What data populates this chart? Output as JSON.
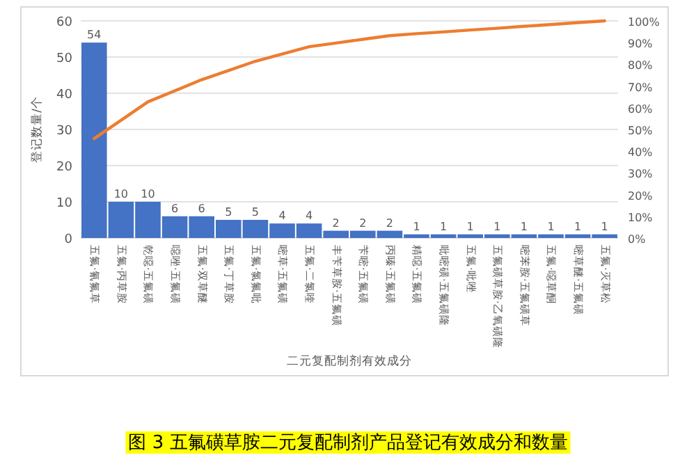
{
  "chart_data": {
    "type": "bar",
    "title": "图 3 五氟磺草胺二元复配制剂产品登记有效成分和数量",
    "xlabel": "二元复配制剂有效成分",
    "ylabel": "登记数量/个",
    "categories": [
      "五氟·氰氟草",
      "五氟·丙草胺",
      "乾噁·五氟磺",
      "噁唑·五氟磺",
      "五氟·双草醚",
      "五氟·丁草胺",
      "五氟·氯氟吡",
      "嘧草·五氟磺",
      "五氟·二氯喹",
      "丰苄草胺·五氟磺",
      "苄嘧·五氟磺",
      "丙嗪·五氟磺",
      "精噁·五氟磺",
      "吡嘧磺·五氟磺隆",
      "五氟·吡唑",
      "五氟磺草胺·乙氧磺隆",
      "嘧苯胺·五氟磺草",
      "五氟·噁草酮",
      "嘧草醚·五氟磺",
      "五氟·灭草松"
    ],
    "series": [
      {
        "color": "#4472c4",
        "values": [
          54,
          10,
          10,
          6,
          6,
          5,
          5,
          4,
          4,
          2,
          2,
          2,
          1,
          1,
          1,
          1,
          1,
          1,
          1,
          1
        ],
        "value_labels": [
          "54",
          "10",
          "10",
          "6",
          "6",
          "5",
          "5",
          "4",
          "4",
          "2",
          "2",
          "2",
          "1",
          "1",
          "1",
          "1",
          "1",
          "1",
          "1",
          "1"
        ]
      },
      {
        "type": "line",
        "axis": "y2",
        "color": "#ed7d31",
        "values": [
          45.8,
          54.2,
          62.7,
          67.8,
          72.9,
          77.1,
          81.4,
          84.7,
          88.1,
          89.8,
          91.5,
          93.2,
          94.1,
          94.9,
          95.8,
          96.6,
          97.5,
          98.3,
          99.2,
          100
        ]
      }
    ],
    "ylim": [
      0,
      60
    ],
    "yticks": [
      0,
      10,
      20,
      30,
      40,
      50,
      60
    ],
    "y2lim": [
      0,
      100
    ],
    "y2ticks": [
      {
        "value": 0,
        "label": "0%"
      },
      {
        "value": 10,
        "label": "10%"
      },
      {
        "value": 20,
        "label": "20%"
      },
      {
        "value": 30,
        "label": "30%"
      },
      {
        "value": 40,
        "label": "40%"
      },
      {
        "value": 50,
        "label": "50%"
      },
      {
        "value": 60,
        "label": "60%"
      },
      {
        "value": 70,
        "label": "70%"
      },
      {
        "value": 80,
        "label": "80%"
      },
      {
        "value": 90,
        "label": "90%"
      },
      {
        "value": 100,
        "label": "100%"
      }
    ],
    "grid": "y",
    "marker": "none"
  }
}
